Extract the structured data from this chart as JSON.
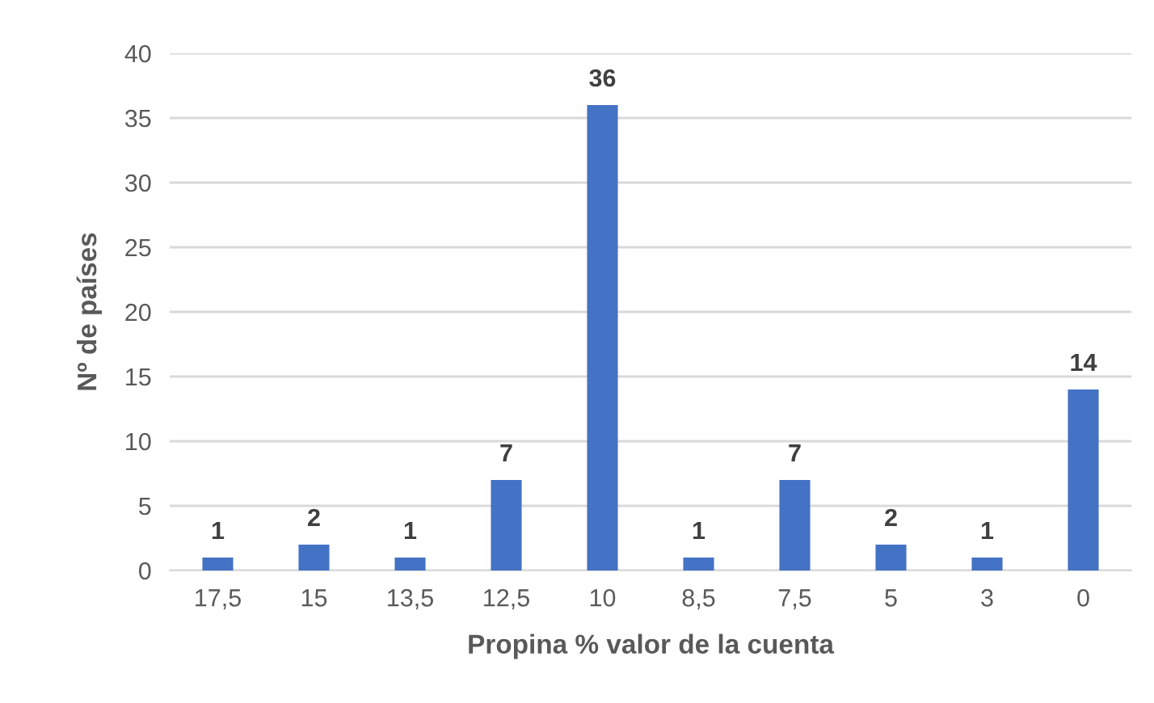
{
  "chart_data": {
    "type": "bar",
    "xlabel": "Propina % valor de la cuenta",
    "ylabel": "Nº de países",
    "categories": [
      "17,5",
      "15",
      "13,5",
      "12,5",
      "10",
      "8,5",
      "7,5",
      "5",
      "3",
      "0"
    ],
    "values": [
      1,
      2,
      1,
      7,
      36,
      1,
      7,
      2,
      1,
      14
    ],
    "color": "#4472c4",
    "ylim": [
      0,
      40
    ],
    "yticks": [
      0,
      5,
      10,
      15,
      20,
      25,
      30,
      35,
      40
    ],
    "grid": "y",
    "data_labels": true
  }
}
